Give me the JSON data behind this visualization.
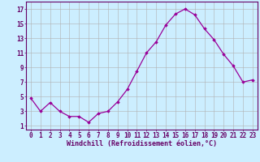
{
  "x": [
    0,
    1,
    2,
    3,
    4,
    5,
    6,
    7,
    8,
    9,
    10,
    11,
    12,
    13,
    14,
    15,
    16,
    17,
    18,
    19,
    20,
    21,
    22,
    23
  ],
  "y": [
    4.8,
    3.0,
    4.2,
    3.0,
    2.3,
    2.3,
    1.5,
    2.7,
    3.0,
    4.3,
    6.0,
    8.5,
    11.0,
    12.5,
    14.8,
    16.3,
    17.0,
    16.2,
    14.3,
    12.8,
    10.8,
    9.2,
    7.0,
    7.3
  ],
  "line_color": "#990099",
  "marker": "D",
  "marker_size": 1.8,
  "bg_color": "#cceeff",
  "grid_color": "#b0b0b0",
  "axis_color": "#660066",
  "xlabel": "Windchill (Refroidissement éolien,°C)",
  "ylabel_ticks": [
    1,
    3,
    5,
    7,
    9,
    11,
    13,
    15,
    17
  ],
  "xticks": [
    0,
    1,
    2,
    3,
    4,
    5,
    6,
    7,
    8,
    9,
    10,
    11,
    12,
    13,
    14,
    15,
    16,
    17,
    18,
    19,
    20,
    21,
    22,
    23
  ],
  "ylim": [
    0.5,
    18.0
  ],
  "xlim": [
    -0.5,
    23.5
  ],
  "font_color": "#660066",
  "tick_font_size": 5.5,
  "xlabel_font_size": 6.0,
  "linewidth": 0.9
}
